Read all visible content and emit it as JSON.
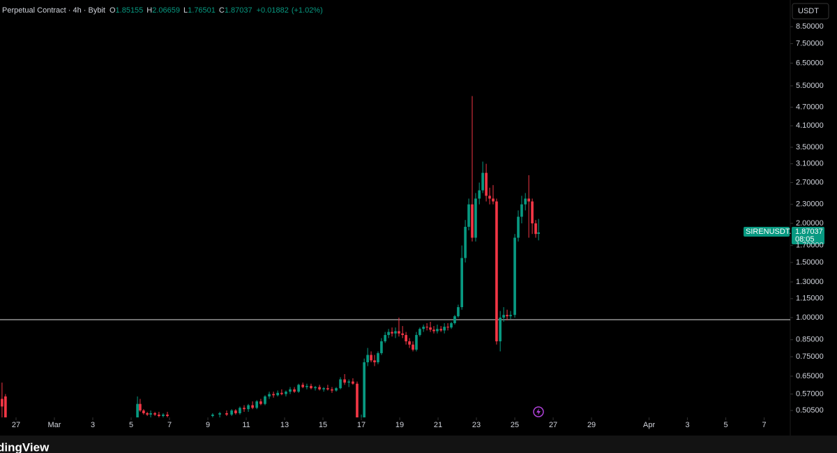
{
  "header": {
    "instrument": "Perpetual Contract · 4h · Bybit",
    "open_label": "O",
    "open": 1.85155,
    "high_label": "H",
    "high": 2.06659,
    "low_label": "L",
    "low": 1.76501,
    "close_label": "C",
    "close": 1.87037,
    "change": "+0.01882",
    "change_pct": "(+1.02%)",
    "currency": "USDT",
    "symbol": "SIRENUSDT.P",
    "countdown": "08:05",
    "logo": "dingView"
  },
  "chart_data": {
    "type": "candlestick",
    "log_scale": true,
    "up_color": "#089981",
    "down_color": "#f23645",
    "horizontal_line": 0.985,
    "ylim": [
      0.48,
      10.34
    ],
    "yticks": [
      {
        "value": 8.5,
        "label": "8.50000"
      },
      {
        "value": 7.5,
        "label": "7.50000"
      },
      {
        "value": 6.5,
        "label": "6.50000"
      },
      {
        "value": 5.5,
        "label": "5.50000"
      },
      {
        "value": 4.7,
        "label": "4.70000"
      },
      {
        "value": 4.1,
        "label": "4.10000"
      },
      {
        "value": 3.5,
        "label": "3.50000"
      },
      {
        "value": 3.1,
        "label": "3.10000"
      },
      {
        "value": 2.7,
        "label": "2.70000"
      },
      {
        "value": 2.3,
        "label": "2.30000"
      },
      {
        "value": 2.0,
        "label": "2.00000"
      },
      {
        "value": 1.7,
        "label": "1.70000"
      },
      {
        "value": 1.5,
        "label": "1.50000"
      },
      {
        "value": 1.3,
        "label": "1.30000"
      },
      {
        "value": 1.15,
        "label": "1.15000"
      },
      {
        "value": 1.0,
        "label": "1.00000"
      },
      {
        "value": 0.85,
        "label": "0.85000"
      },
      {
        "value": 0.75,
        "label": "0.75000"
      },
      {
        "value": 0.65,
        "label": "0.65000"
      },
      {
        "value": 0.57,
        "label": "0.57000"
      },
      {
        "value": 0.505,
        "label": "0.50500"
      }
    ],
    "xlim": [
      -1.836,
      39.36
    ],
    "xticks": [
      {
        "value": -1,
        "label": "27"
      },
      {
        "value": 1,
        "label": "Mar"
      },
      3,
      5,
      7,
      9,
      11,
      13,
      15,
      17,
      19,
      21,
      23,
      25,
      27,
      29,
      {
        "value": 32,
        "label": "Apr"
      },
      {
        "value": 34,
        "label": "3"
      },
      {
        "value": 36,
        "label": "5"
      },
      {
        "value": 38,
        "label": "7"
      }
    ],
    "x": [
      -1.73,
      -1.55,
      5.33,
      5.47,
      5.65,
      5.84,
      6.02,
      6.24,
      6.45,
      6.67,
      6.89,
      9.25,
      9.62,
      9.98,
      10.24,
      10.45,
      10.67,
      10.89,
      11.11,
      11.33,
      11.55,
      11.76,
      11.98,
      12.2,
      12.42,
      12.64,
      12.85,
      13.07,
      13.29,
      13.51,
      13.73,
      13.95,
      14.16,
      14.38,
      14.6,
      14.82,
      15.04,
      15.25,
      15.47,
      15.69,
      15.91,
      16.13,
      16.35,
      16.56,
      16.78,
      17.0,
      17.15,
      17.33,
      17.51,
      17.69,
      17.87,
      18.05,
      18.24,
      18.42,
      18.6,
      18.78,
      18.96,
      19.15,
      19.33,
      19.51,
      19.69,
      19.87,
      20.05,
      20.24,
      20.42,
      20.6,
      20.78,
      20.96,
      21.15,
      21.33,
      21.51,
      21.69,
      21.87,
      22.05,
      22.24,
      22.42,
      22.6,
      22.78,
      22.96,
      23.15,
      23.33,
      23.51,
      23.69,
      23.87,
      24.05,
      24.24,
      24.42,
      24.6,
      24.78,
      25.0,
      25.18,
      25.36,
      25.55,
      25.73,
      25.91,
      26.09,
      26.24
    ],
    "open": [
      0.55,
      0.56,
      0.48,
      0.53,
      0.505,
      0.495,
      0.49,
      0.495,
      0.49,
      0.485,
      0.49,
      0.485,
      0.49,
      0.495,
      0.49,
      0.505,
      0.495,
      0.515,
      0.51,
      0.525,
      0.515,
      0.54,
      0.53,
      0.56,
      0.57,
      0.565,
      0.575,
      0.57,
      0.58,
      0.59,
      0.58,
      0.61,
      0.6,
      0.605,
      0.595,
      0.6,
      0.59,
      0.595,
      0.59,
      0.585,
      0.595,
      0.635,
      0.62,
      0.625,
      0.615,
      0.47,
      0.48,
      0.72,
      0.76,
      0.73,
      0.72,
      0.77,
      0.84,
      0.88,
      0.9,
      0.89,
      0.905,
      0.89,
      0.88,
      0.84,
      0.82,
      0.79,
      0.88,
      0.92,
      0.935,
      0.93,
      0.915,
      0.905,
      0.92,
      0.91,
      0.935,
      0.93,
      0.96,
      1.01,
      1.08,
      1.55,
      1.95,
      2.3,
      1.8,
      2.4,
      2.55,
      2.9,
      2.45,
      2.4,
      2.35,
      0.84,
      1.0,
      1.02,
      1.01,
      1.02,
      1.8,
      2.1,
      2.3,
      2.4,
      2.35,
      2.0,
      1.85155
    ],
    "high": [
      0.62,
      0.57,
      0.56,
      0.55,
      0.51,
      0.5,
      0.505,
      0.5,
      0.5,
      0.495,
      0.5,
      0.495,
      0.5,
      0.505,
      0.51,
      0.51,
      0.52,
      0.525,
      0.53,
      0.54,
      0.545,
      0.55,
      0.565,
      0.58,
      0.58,
      0.585,
      0.59,
      0.585,
      0.6,
      0.6,
      0.615,
      0.62,
      0.615,
      0.615,
      0.605,
      0.61,
      0.6,
      0.61,
      0.6,
      0.6,
      0.645,
      0.66,
      0.635,
      0.64,
      0.625,
      0.49,
      0.74,
      0.8,
      0.78,
      0.76,
      0.78,
      0.86,
      0.9,
      0.92,
      0.93,
      0.93,
      1.0,
      0.94,
      0.9,
      0.86,
      0.84,
      0.9,
      0.93,
      0.95,
      0.96,
      0.97,
      0.94,
      0.95,
      0.94,
      0.96,
      0.96,
      0.97,
      1.02,
      1.1,
      1.7,
      2.05,
      2.4,
      5.1,
      2.5,
      2.7,
      3.15,
      3.1,
      2.6,
      2.65,
      2.4,
      1.05,
      1.08,
      1.06,
      1.05,
      1.85,
      2.2,
      2.45,
      2.5,
      2.85,
      2.4,
      2.05,
      2.06659
    ],
    "low": [
      0.48,
      0.47,
      0.47,
      0.5,
      0.49,
      0.485,
      0.48,
      0.485,
      0.48,
      0.48,
      0.48,
      0.48,
      0.48,
      0.485,
      0.485,
      0.49,
      0.49,
      0.5,
      0.5,
      0.51,
      0.51,
      0.525,
      0.525,
      0.55,
      0.555,
      0.56,
      0.565,
      0.56,
      0.57,
      0.575,
      0.575,
      0.595,
      0.59,
      0.59,
      0.585,
      0.585,
      0.58,
      0.585,
      0.575,
      0.58,
      0.59,
      0.61,
      0.6,
      0.61,
      0.46,
      0.45,
      0.47,
      0.7,
      0.72,
      0.7,
      0.71,
      0.76,
      0.83,
      0.86,
      0.87,
      0.86,
      0.87,
      0.86,
      0.82,
      0.8,
      0.78,
      0.78,
      0.87,
      0.9,
      0.91,
      0.9,
      0.89,
      0.89,
      0.9,
      0.89,
      0.91,
      0.92,
      0.95,
      1.0,
      1.06,
      1.5,
      1.9,
      1.75,
      1.75,
      2.3,
      2.5,
      2.35,
      2.3,
      2.3,
      0.82,
      0.78,
      0.97,
      0.98,
      0.99,
      1.0,
      1.75,
      2.0,
      2.2,
      1.8,
      1.85,
      1.8,
      1.76501
    ],
    "close": [
      0.52,
      0.47,
      0.53,
      0.505,
      0.495,
      0.49,
      0.495,
      0.49,
      0.485,
      0.49,
      0.485,
      0.49,
      0.495,
      0.49,
      0.505,
      0.495,
      0.515,
      0.51,
      0.525,
      0.515,
      0.54,
      0.53,
      0.56,
      0.57,
      0.565,
      0.575,
      0.57,
      0.58,
      0.59,
      0.58,
      0.61,
      0.6,
      0.605,
      0.595,
      0.6,
      0.59,
      0.595,
      0.59,
      0.585,
      0.595,
      0.635,
      0.62,
      0.625,
      0.615,
      0.47,
      0.48,
      0.72,
      0.76,
      0.73,
      0.72,
      0.77,
      0.84,
      0.88,
      0.9,
      0.89,
      0.905,
      0.89,
      0.88,
      0.84,
      0.82,
      0.79,
      0.88,
      0.92,
      0.935,
      0.93,
      0.915,
      0.905,
      0.92,
      0.91,
      0.935,
      0.93,
      0.96,
      1.01,
      1.08,
      1.55,
      1.95,
      2.3,
      1.8,
      2.4,
      2.55,
      2.9,
      2.45,
      2.4,
      2.35,
      0.84,
      1.0,
      1.02,
      1.01,
      1.02,
      1.8,
      2.1,
      2.3,
      2.4,
      2.35,
      2.0,
      1.85,
      1.87037
    ]
  }
}
